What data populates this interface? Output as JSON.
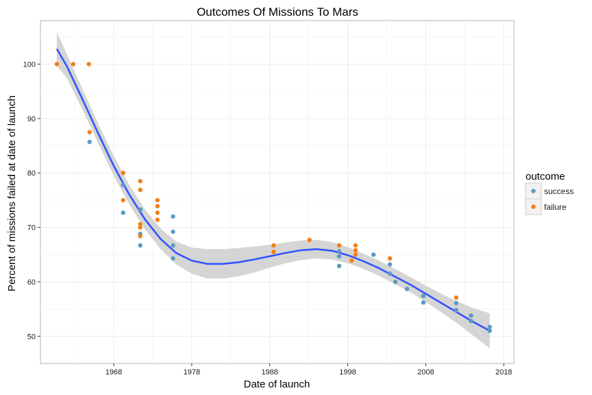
{
  "chart_data": {
    "type": "scatter",
    "title": "Outcomes Of Missions To Mars",
    "xlabel": "Date of launch",
    "ylabel": "Percent of missions failed at date of launch",
    "xlim": [
      1958.6,
      2019.3
    ],
    "ylim": [
      45,
      108
    ],
    "x_ticks": [
      "1968",
      "1978",
      "1988",
      "1998",
      "2008",
      "2018"
    ],
    "y_ticks": [
      "50",
      "60",
      "70",
      "80",
      "90",
      "100"
    ],
    "grid": true,
    "legend": {
      "title": "outcome",
      "position": "right",
      "entries": [
        {
          "label": "success",
          "color": "#5b9ac4"
        },
        {
          "label": "failure",
          "color": "#f57f17"
        }
      ]
    },
    "series": [
      {
        "name": "success",
        "color": "#5b9ac4",
        "points": [
          [
            1964.9,
            85.7
          ],
          [
            1969.2,
            77.8
          ],
          [
            1969.2,
            72.7
          ],
          [
            1971.4,
            73.3
          ],
          [
            1971.4,
            68.8
          ],
          [
            1971.4,
            66.7
          ],
          [
            1975.6,
            72.0
          ],
          [
            1975.6,
            69.2
          ],
          [
            1975.6,
            66.7
          ],
          [
            1975.6,
            64.3
          ],
          [
            1996.9,
            65.6
          ],
          [
            1996.9,
            64.7
          ],
          [
            1996.9,
            62.9
          ],
          [
            2001.3,
            65.0
          ],
          [
            2003.4,
            63.2
          ],
          [
            2003.4,
            61.5
          ],
          [
            2004.1,
            60.0
          ],
          [
            2005.6,
            58.7
          ],
          [
            2007.7,
            57.4
          ],
          [
            2007.7,
            56.2
          ],
          [
            2011.9,
            56.1
          ],
          [
            2011.9,
            54.8
          ],
          [
            2013.8,
            53.8
          ],
          [
            2013.8,
            52.8
          ],
          [
            2016.2,
            51.7
          ],
          [
            2016.2,
            51.0
          ]
        ]
      },
      {
        "name": "failure",
        "color": "#f57f17",
        "points": [
          [
            1960.7,
            100.0
          ],
          [
            1962.8,
            100.0
          ],
          [
            1964.8,
            100.0
          ],
          [
            1964.9,
            87.5
          ],
          [
            1969.2,
            80.0
          ],
          [
            1969.2,
            75.0
          ],
          [
            1971.4,
            78.5
          ],
          [
            1971.4,
            76.9
          ],
          [
            1971.4,
            70.6
          ],
          [
            1971.4,
            70.0
          ],
          [
            1971.4,
            68.4
          ],
          [
            1973.6,
            75.0
          ],
          [
            1973.6,
            73.9
          ],
          [
            1973.6,
            72.7
          ],
          [
            1973.6,
            71.4
          ],
          [
            1988.5,
            66.7
          ],
          [
            1988.5,
            65.5
          ],
          [
            1993.1,
            67.7
          ],
          [
            1996.9,
            66.7
          ],
          [
            1999.0,
            66.7
          ],
          [
            1999.0,
            65.8
          ],
          [
            1998.5,
            63.9
          ],
          [
            1999.0,
            65.0
          ],
          [
            2003.4,
            64.3
          ],
          [
            2011.9,
            57.1
          ]
        ]
      }
    ],
    "trend": {
      "method": "loess",
      "color": "#3355ff",
      "band_color": "#d3d3d3",
      "points": [
        [
          1960.7,
          102.8,
          105.9,
          99.7
        ],
        [
          1962,
          99.6,
          101.8,
          97.4
        ],
        [
          1964,
          93.5,
          95.4,
          91.6
        ],
        [
          1966,
          87.3,
          89.1,
          85.5
        ],
        [
          1968,
          81.3,
          83.1,
          79.5
        ],
        [
          1970,
          76.0,
          77.8,
          74.2
        ],
        [
          1972,
          71.5,
          73.3,
          69.7
        ],
        [
          1974,
          67.9,
          69.8,
          66.0
        ],
        [
          1976,
          65.3,
          67.4,
          63.2
        ],
        [
          1978,
          63.9,
          66.3,
          61.5
        ],
        [
          1980,
          63.3,
          66.0,
          60.6
        ],
        [
          1982,
          63.3,
          66.0,
          60.6
        ],
        [
          1984,
          63.6,
          66.2,
          61.0
        ],
        [
          1986,
          64.1,
          66.5,
          61.7
        ],
        [
          1988,
          64.7,
          66.8,
          62.6
        ],
        [
          1990,
          65.3,
          67.2,
          63.4
        ],
        [
          1992,
          65.8,
          67.6,
          64.0
        ],
        [
          1994,
          66.0,
          67.7,
          64.3
        ],
        [
          1996,
          65.7,
          67.3,
          64.1
        ],
        [
          1998,
          64.9,
          66.4,
          63.4
        ],
        [
          2000,
          63.8,
          65.2,
          62.4
        ],
        [
          2002,
          62.5,
          63.9,
          61.1
        ],
        [
          2004,
          61.0,
          62.4,
          59.6
        ],
        [
          2006,
          59.5,
          60.9,
          58.1
        ],
        [
          2008,
          57.8,
          59.3,
          56.3
        ],
        [
          2010,
          56.1,
          57.8,
          54.4
        ],
        [
          2012,
          54.4,
          56.4,
          52.4
        ],
        [
          2014,
          52.7,
          55.2,
          50.2
        ],
        [
          2016.2,
          51.0,
          54.2,
          47.8
        ]
      ]
    }
  }
}
